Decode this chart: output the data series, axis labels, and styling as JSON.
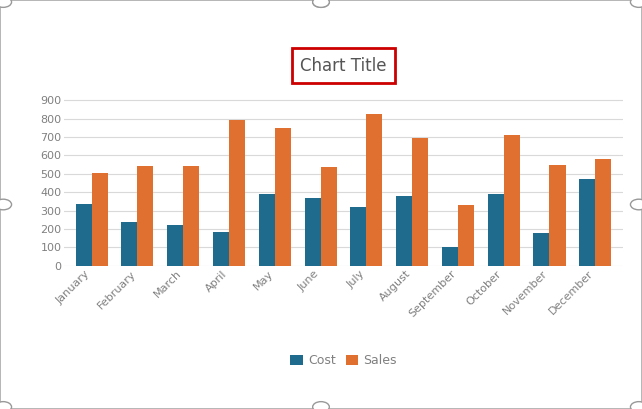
{
  "categories": [
    "January",
    "February",
    "March",
    "April",
    "May",
    "June",
    "July",
    "August",
    "September",
    "October",
    "November",
    "December"
  ],
  "cost": [
    335,
    240,
    220,
    185,
    390,
    370,
    320,
    380,
    105,
    390,
    180,
    470
  ],
  "sales": [
    505,
    540,
    545,
    795,
    748,
    535,
    825,
    695,
    330,
    710,
    550,
    580
  ],
  "cost_color": "#1f6b8e",
  "sales_color": "#e07030",
  "title": "Chart Title",
  "title_box_color": "#cc0000",
  "bg_color": "#ffffff",
  "outer_border_color": "#999999",
  "grid_color": "#d9d9d9",
  "tick_color": "#808080",
  "ylim": [
    0,
    1000
  ],
  "yticks": [
    0,
    100,
    200,
    300,
    400,
    500,
    600,
    700,
    800,
    900
  ],
  "bar_width": 0.35,
  "legend_labels": [
    "Cost",
    "Sales"
  ],
  "figsize": [
    6.42,
    4.09
  ],
  "dpi": 100
}
